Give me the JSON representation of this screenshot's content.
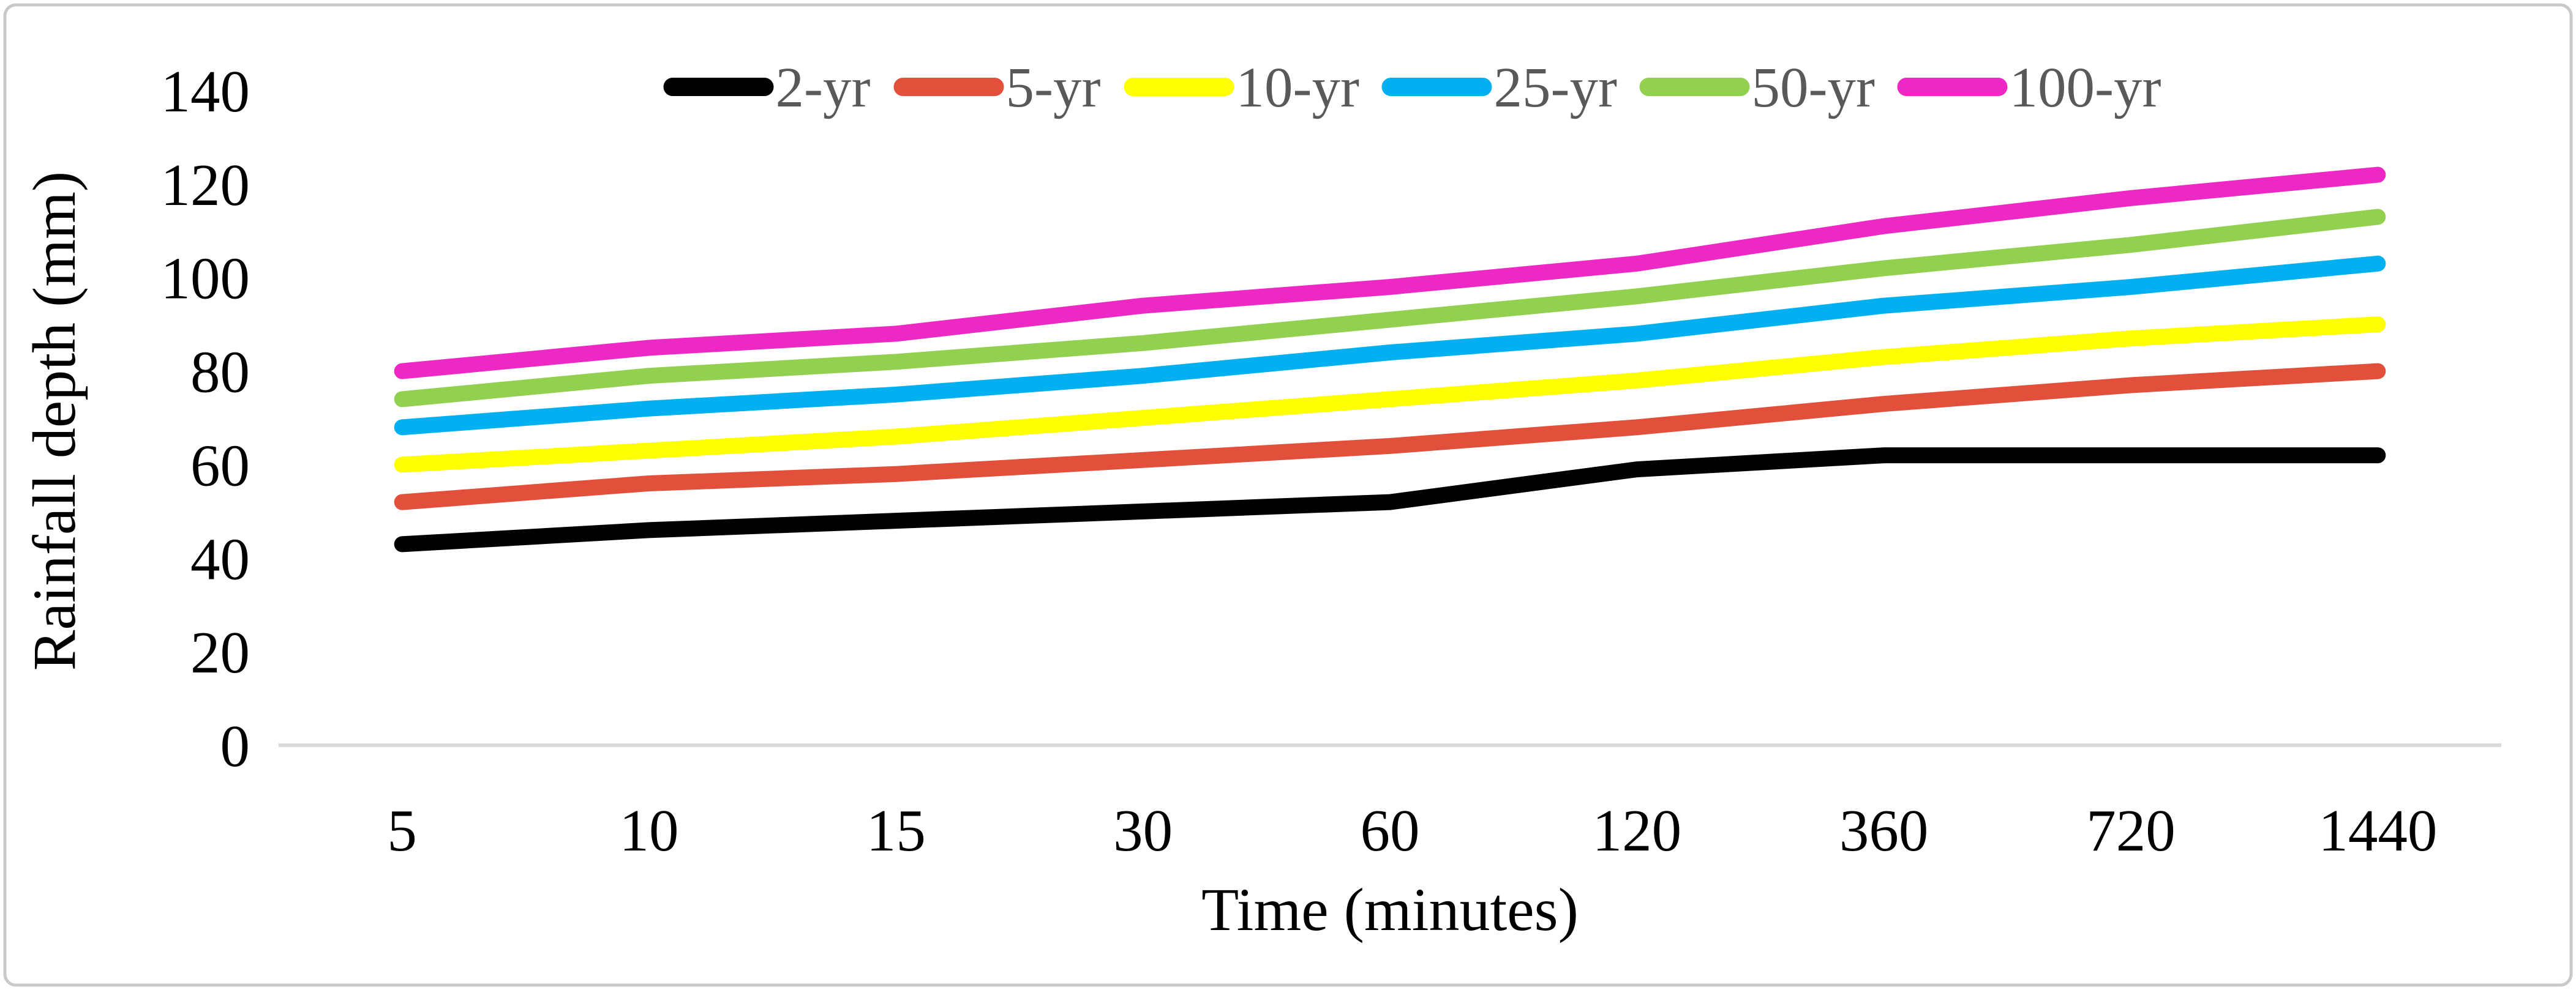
{
  "figure": {
    "background": "#ffffff",
    "border_color": "#c9c9c9",
    "axis_line_color": "#d9d9d9",
    "tick_label_color": "#000000",
    "legend_label_color": "#595959"
  },
  "chart_data": {
    "type": "line",
    "title": "",
    "xlabel": "Time (minutes)",
    "ylabel": "Rainfall depth (mm)",
    "categories": [
      "5",
      "10",
      "15",
      "30",
      "60",
      "120",
      "360",
      "720",
      "1440"
    ],
    "x_axis_type": "categorical-even-spacing",
    "y_ticks": [
      0,
      20,
      40,
      60,
      80,
      100,
      120,
      140
    ],
    "ylim": [
      0,
      140
    ],
    "grid": false,
    "legend_position": "top-center",
    "line_style": "thick-round-cap",
    "series": [
      {
        "name": "2-yr",
        "color": "#000000",
        "values": [
          43,
          46,
          48,
          50,
          52,
          59,
          62,
          62,
          62
        ]
      },
      {
        "name": "5-yr",
        "color": "#e2503c",
        "values": [
          52,
          56,
          58,
          61,
          64,
          68,
          73,
          77,
          80
        ]
      },
      {
        "name": "10-yr",
        "color": "#ffff00",
        "values": [
          60,
          63,
          66,
          70,
          74,
          78,
          83,
          87,
          90
        ]
      },
      {
        "name": "25-yr",
        "color": "#00b0f0",
        "values": [
          68,
          72,
          75,
          79,
          84,
          88,
          94,
          98,
          103
        ]
      },
      {
        "name": "50-yr",
        "color": "#92d050",
        "values": [
          74,
          79,
          82,
          86,
          91,
          96,
          102,
          107,
          113
        ]
      },
      {
        "name": "100-yr",
        "color": "#ee28c5",
        "values": [
          80,
          85,
          88,
          94,
          98,
          103,
          111,
          117,
          122
        ]
      }
    ]
  }
}
